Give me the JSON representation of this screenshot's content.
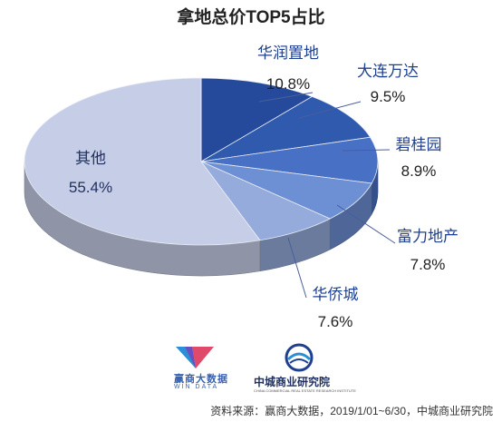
{
  "title": "拿地总价TOP5占比",
  "chart_data": {
    "type": "pie",
    "title": "拿地总价TOP5占比",
    "slices": [
      {
        "name": "华润置地",
        "label": "10.8%",
        "value": 10.8,
        "color": "#254a9c"
      },
      {
        "name": "大连万达",
        "label": "9.5%",
        "value": 9.5,
        "color": "#2f5aae"
      },
      {
        "name": "碧桂园",
        "label": "8.9%",
        "value": 8.9,
        "color": "#4870c4"
      },
      {
        "name": "富力地产",
        "label": "7.8%",
        "value": 7.8,
        "color": "#6d8fd3"
      },
      {
        "name": "华侨城",
        "label": "7.6%",
        "value": 7.6,
        "color": "#94abdc"
      },
      {
        "name": "其他",
        "label": "55.4%",
        "value": 55.4,
        "color": "#c6cde6"
      }
    ],
    "legend": "none"
  },
  "logos": {
    "windata_name": "赢商大数据",
    "windata_sub": "WIN DATA",
    "zhongcheng_name": "中城商业研究院",
    "zhongcheng_sub": "CHINA COMMERCIAL REAL ESTATE RESEARCH INSTITUTE"
  },
  "source": "资料来源：赢商大数据，2019/1/01~6/30，中城商业研究院"
}
